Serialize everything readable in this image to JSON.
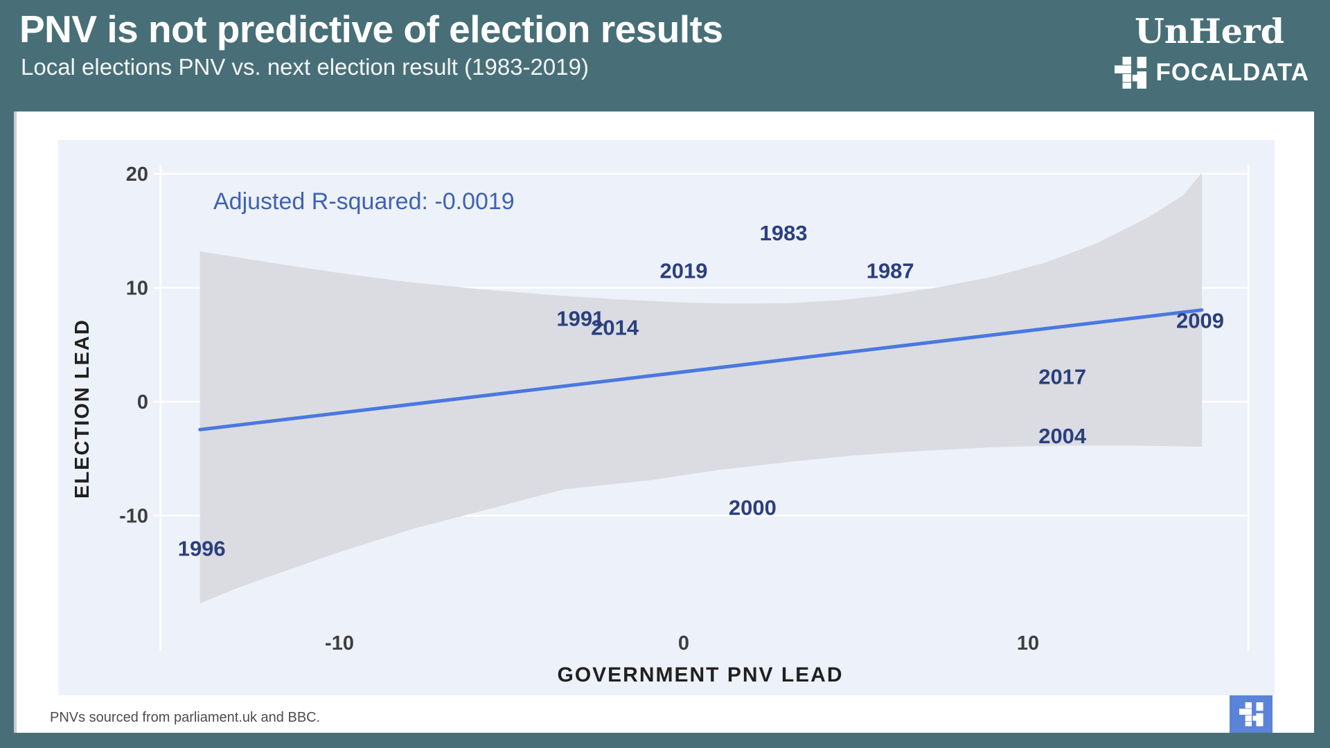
{
  "header": {
    "title": "PNV is not predictive of election results",
    "subtitle": "Local elections PNV vs. next election result (1983-2019)",
    "unherd_logo": "UnHerd",
    "focaldata_logo": "FOCALDATA"
  },
  "footer": {
    "source": "PNVs sourced from parliament.uk and BBC."
  },
  "colors": {
    "background_teal": "#486f77",
    "card_white": "#ffffff",
    "panel_blue": "#edf1f9",
    "band_gray": "#d8dbe1",
    "gridline_white": "#ffffff",
    "trendline_blue": "#4a78e0",
    "year_label_navy": "#2b3f7e",
    "annotation_blue": "#3e63b0",
    "tick_gray": "#3e3e3e",
    "axis_title_dark": "#202020",
    "focaldata_tile_blue": "#5b83d8",
    "logo_white": "#ffffff"
  },
  "chart_data": {
    "type": "scatter",
    "title": "PNV is not predictive of election results",
    "subtitle": "Local elections PNV vs. next election result (1983-2019)",
    "xlabel": "GOVERNMENT PNV LEAD",
    "ylabel": "ELECTION LEAD",
    "annotation": "Adjusted R-squared: -0.0019",
    "xticks": [
      -10,
      0,
      10
    ],
    "yticks": [
      20,
      10,
      0,
      -10
    ],
    "xlim": [
      -15.2,
      16.4
    ],
    "ylim": [
      -20,
      22
    ],
    "grid": "horizontal-only",
    "legend": "none",
    "points": [
      {
        "label": "1983",
        "x": 2.9,
        "y": 14.8
      },
      {
        "label": "1987",
        "x": 6.0,
        "y": 11.5
      },
      {
        "label": "1991",
        "x": -3.0,
        "y": 7.3
      },
      {
        "label": "1996",
        "x": -14.0,
        "y": -12.9
      },
      {
        "label": "2000",
        "x": 2.0,
        "y": -9.3
      },
      {
        "label": "2004",
        "x": 11.0,
        "y": -3.0
      },
      {
        "label": "2009",
        "x": 15.0,
        "y": 7.1
      },
      {
        "label": "2014",
        "x": -2.0,
        "y": 6.5
      },
      {
        "label": "2017",
        "x": 11.0,
        "y": 2.2
      },
      {
        "label": "2019",
        "x": 0.0,
        "y": 11.5
      }
    ],
    "trendline": {
      "x1": -14.05,
      "y1": -2.45,
      "x2": 15.05,
      "y2": 8.05
    },
    "confidence_band": {
      "top": [
        [
          -14.05,
          13.2
        ],
        [
          -12,
          12.2
        ],
        [
          -10,
          11.3
        ],
        [
          -8,
          10.5
        ],
        [
          -6,
          9.9
        ],
        [
          -4,
          9.4
        ],
        [
          -2,
          9.0
        ],
        [
          0,
          8.7
        ],
        [
          1.5,
          8.6
        ],
        [
          3,
          8.65
        ],
        [
          4.5,
          8.9
        ],
        [
          6,
          9.4
        ],
        [
          7.5,
          10.1
        ],
        [
          9,
          11.0
        ],
        [
          10.5,
          12.2
        ],
        [
          12,
          13.9
        ],
        [
          13.5,
          16.2
        ],
        [
          14.5,
          18.1
        ],
        [
          15.05,
          20.1
        ]
      ],
      "bottom": [
        [
          15.05,
          -3.95
        ],
        [
          13,
          -3.85
        ],
        [
          11,
          -3.85
        ],
        [
          9,
          -4.0
        ],
        [
          7,
          -4.3
        ],
        [
          5,
          -4.7
        ],
        [
          3,
          -5.3
        ],
        [
          1,
          -6.0
        ],
        [
          -1,
          -6.9
        ],
        [
          -3.5,
          -7.7
        ],
        [
          -5.5,
          -9.3
        ],
        [
          -7.8,
          -11.1
        ],
        [
          -10,
          -13.2
        ],
        [
          -12,
          -15.3
        ],
        [
          -13,
          -16.4
        ],
        [
          -14.05,
          -17.7
        ]
      ]
    }
  }
}
